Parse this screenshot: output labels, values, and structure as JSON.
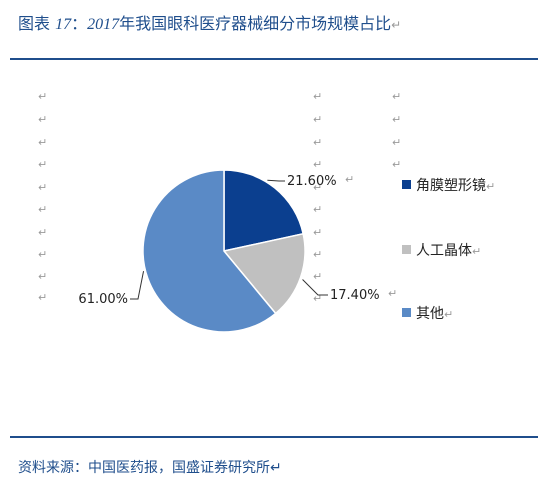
{
  "title": {
    "prefix": "图表 ",
    "number": "17",
    "sep": "：",
    "year": "2017",
    "text": "年我国眼科医疗器械细分市场规模占比",
    "mark": "↵"
  },
  "source": "资料来源：中国医药报，国盛证券研究所↵",
  "mark": "↵",
  "chart_data": {
    "type": "pie",
    "title": "",
    "categories": [
      "角膜塑形镜",
      "人工晶体",
      "其他"
    ],
    "values": [
      21.6,
      17.4,
      61.0
    ],
    "data_labels": [
      "21.60%",
      "17.40%",
      "61.00%"
    ],
    "colors": [
      "#0b3f8f",
      "#c0c0c0",
      "#5a8ac6"
    ],
    "legend_placement": "right",
    "legend_marks": [
      "↵",
      "↵",
      "↵"
    ]
  }
}
